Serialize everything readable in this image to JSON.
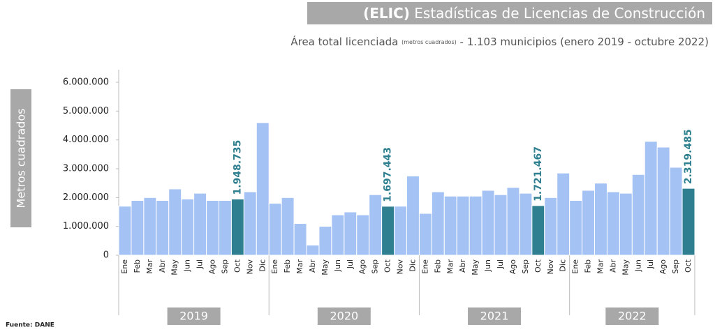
{
  "chart_data": {
    "type": "bar",
    "title_bold": "(ELIC)",
    "title": "Estadísticas de Licencias de Construcción",
    "subtitle": {
      "main": "Área total licenciada",
      "unit": "(metros cuadrados)",
      "scope": "- 1.103 municipios",
      "period": "(enero 2019 - octubre 2022)"
    },
    "y_label": "Metros cuadrados",
    "source": "Fuente: DANE",
    "categories": [
      "Ene",
      "Feb",
      "Mar",
      "Abr",
      "May",
      "Jun",
      "Jul",
      "Ago",
      "Sep",
      "Oct",
      "Nov",
      "Dic",
      "Ene",
      "Feb",
      "Mar",
      "Abr",
      "May",
      "Jun",
      "Jul",
      "Ago",
      "Sep",
      "Oct",
      "Nov",
      "Dic",
      "Ene",
      "Feb",
      "Mar",
      "Abr",
      "May",
      "Jun",
      "Jul",
      "Ago",
      "Sep",
      "Oct",
      "Nov",
      "Dic",
      "Ene",
      "Feb",
      "Mar",
      "Abr",
      "May",
      "Jun",
      "Jul",
      "Ago",
      "Sep",
      "Oct"
    ],
    "years": [
      "2019",
      "2020",
      "2021",
      "2022"
    ],
    "values": [
      1700000,
      1900000,
      2000000,
      1900000,
      2300000,
      1950000,
      2150000,
      1900000,
      1900000,
      1948735,
      2200000,
      4600000,
      1800000,
      2000000,
      1100000,
      350000,
      1000000,
      1400000,
      1500000,
      1400000,
      2100000,
      1697443,
      1700000,
      2750000,
      1450000,
      2200000,
      2050000,
      2050000,
      2050000,
      2250000,
      2100000,
      2350000,
      2150000,
      1721467,
      2000000,
      2850000,
      1900000,
      2250000,
      2500000,
      2200000,
      2150000,
      2800000,
      3950000,
      3750000,
      3050000,
      2319485
    ],
    "value_labels": [
      null,
      null,
      null,
      null,
      null,
      null,
      null,
      null,
      null,
      "1.948.735",
      null,
      null,
      null,
      null,
      null,
      null,
      null,
      null,
      null,
      null,
      null,
      "1.697.443",
      null,
      null,
      null,
      null,
      null,
      null,
      null,
      null,
      null,
      null,
      null,
      "1.721.467",
      null,
      null,
      null,
      null,
      null,
      null,
      null,
      null,
      null,
      null,
      null,
      "2.319.485"
    ],
    "color": "#a4c2f4",
    "highlight_color": "#2e7f8f",
    "ylim": [
      0,
      6000000
    ],
    "yticks": [
      0,
      {
        "value": 1000000,
        "label": "1.000.000"
      },
      {
        "value": 2000000,
        "label": "2.000.000"
      },
      {
        "value": 3000000,
        "label": "3.000.000"
      },
      {
        "value": 4000000,
        "label": "4.000.000"
      },
      {
        "value": 5000000,
        "label": "5.000.000"
      },
      {
        "value": 6000000,
        "label": "6.000.000"
      }
    ],
    "grid": false
  }
}
